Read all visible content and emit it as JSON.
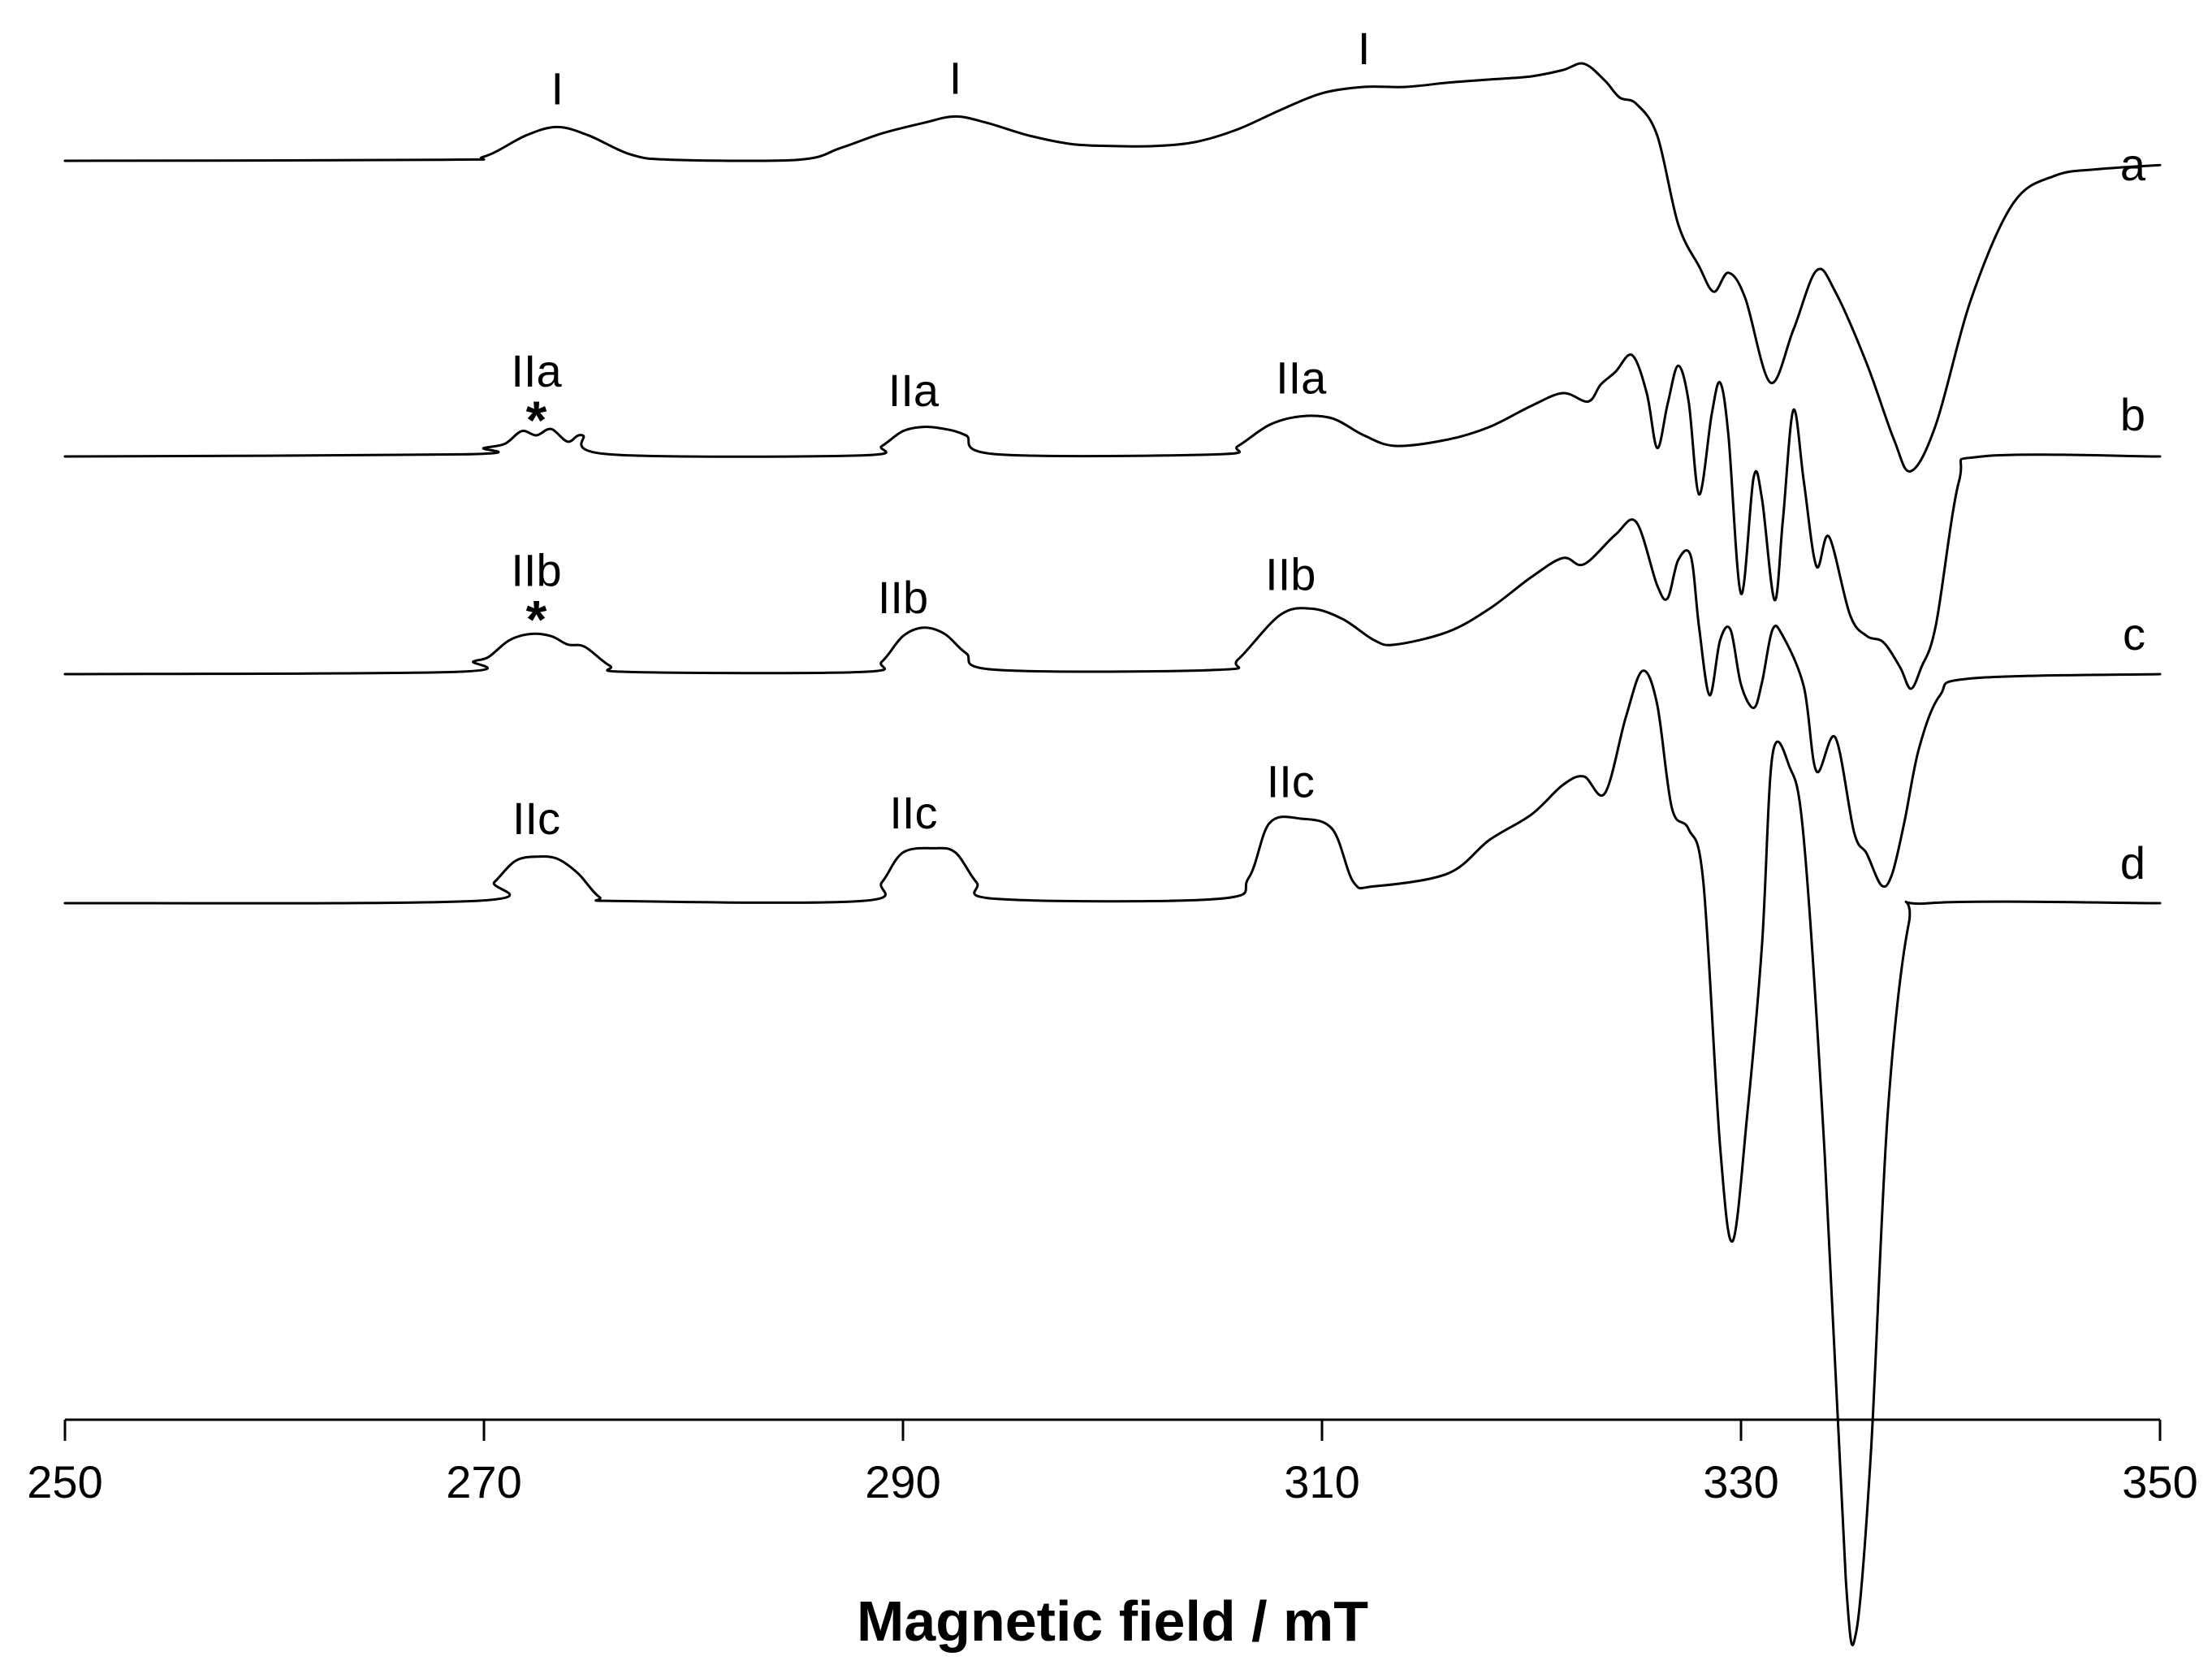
{
  "chart_data": {
    "type": "line",
    "title": "",
    "xlabel": "Magnetic field / mT",
    "ylabel": "",
    "xlim": [
      250,
      350
    ],
    "x_ticks": [
      250,
      270,
      290,
      310,
      330,
      350
    ],
    "grid": false,
    "series": [
      {
        "name": "a",
        "points": [
          [
            250,
            0
          ],
          [
            268,
            0.5
          ],
          [
            270,
            2
          ],
          [
            272,
            12
          ],
          [
            273.5,
            16
          ],
          [
            275,
            12
          ],
          [
            277,
            3
          ],
          [
            279,
            0.5
          ],
          [
            285,
            0.5
          ],
          [
            287,
            6
          ],
          [
            289,
            13
          ],
          [
            291,
            18
          ],
          [
            292.5,
            21
          ],
          [
            294,
            18
          ],
          [
            296,
            12
          ],
          [
            298,
            8
          ],
          [
            300,
            7
          ],
          [
            302,
            7
          ],
          [
            304,
            9
          ],
          [
            306,
            15
          ],
          [
            308,
            24
          ],
          [
            310,
            32
          ],
          [
            312,
            35
          ],
          [
            314,
            35
          ],
          [
            316,
            37
          ],
          [
            318,
            38.5
          ],
          [
            320,
            40
          ],
          [
            321.5,
            43
          ],
          [
            322.5,
            46
          ],
          [
            323.5,
            38
          ],
          [
            324.2,
            30
          ],
          [
            325,
            27
          ],
          [
            326,
            12
          ],
          [
            327,
            -30
          ],
          [
            328,
            -50
          ],
          [
            328.7,
            -62
          ],
          [
            329.4,
            -53
          ],
          [
            330.2,
            -65
          ],
          [
            331.4,
            -105
          ],
          [
            332.5,
            -80
          ],
          [
            333.6,
            -52
          ],
          [
            334.5,
            -62
          ],
          [
            336,
            -96
          ],
          [
            337.3,
            -132
          ],
          [
            338.1,
            -147
          ],
          [
            339.3,
            -125
          ],
          [
            341,
            -65
          ],
          [
            343,
            -20
          ],
          [
            345,
            -7
          ],
          [
            347,
            -4
          ],
          [
            350,
            -2
          ]
        ]
      },
      {
        "name": "b",
        "points": [
          [
            250,
            0
          ],
          [
            269,
            1
          ],
          [
            270,
            4
          ],
          [
            271,
            6
          ],
          [
            271.8,
            12
          ],
          [
            272.5,
            10
          ],
          [
            273.2,
            13
          ],
          [
            274,
            7
          ],
          [
            274.7,
            10
          ],
          [
            276,
            1
          ],
          [
            288,
            0.5
          ],
          [
            289,
            5
          ],
          [
            290,
            12
          ],
          [
            291,
            14
          ],
          [
            292,
            13
          ],
          [
            293,
            10
          ],
          [
            294.5,
            1
          ],
          [
            305,
            1
          ],
          [
            306,
            5
          ],
          [
            307.5,
            15
          ],
          [
            309,
            19
          ],
          [
            310.5,
            18
          ],
          [
            312,
            10
          ],
          [
            313.5,
            5
          ],
          [
            316,
            8
          ],
          [
            318,
            14
          ],
          [
            320,
            24
          ],
          [
            321.5,
            30
          ],
          [
            322.7,
            26
          ],
          [
            323.3,
            34
          ],
          [
            324,
            40
          ],
          [
            324.8,
            48
          ],
          [
            325.5,
            30
          ],
          [
            326,
            4
          ],
          [
            326.5,
            25
          ],
          [
            327,
            43
          ],
          [
            327.5,
            26
          ],
          [
            328,
            -18
          ],
          [
            328.6,
            20
          ],
          [
            329,
            35
          ],
          [
            329.4,
            10
          ],
          [
            330,
            -65
          ],
          [
            330.6,
            -10
          ],
          [
            331,
            -20
          ],
          [
            331.6,
            -68
          ],
          [
            332,
            -30
          ],
          [
            332.5,
            22
          ],
          [
            333,
            -12
          ],
          [
            333.6,
            -52
          ],
          [
            334.2,
            -38
          ],
          [
            335.2,
            -75
          ],
          [
            336,
            -85
          ],
          [
            336.8,
            -88
          ],
          [
            337.6,
            -100
          ],
          [
            338.1,
            -110
          ],
          [
            338.6,
            -100
          ],
          [
            339.3,
            -80
          ],
          [
            340.4,
            -12
          ],
          [
            341.5,
            0
          ],
          [
            350,
            0
          ]
        ]
      },
      {
        "name": "c",
        "points": [
          [
            250,
            0
          ],
          [
            268.5,
            1
          ],
          [
            269.5,
            6
          ],
          [
            270.2,
            8
          ],
          [
            271.2,
            16
          ],
          [
            272.2,
            19
          ],
          [
            273.2,
            18
          ],
          [
            274,
            14
          ],
          [
            274.8,
            13
          ],
          [
            276,
            4
          ],
          [
            277,
            1
          ],
          [
            288,
            1
          ],
          [
            289,
            6
          ],
          [
            290,
            18
          ],
          [
            291,
            22
          ],
          [
            292,
            19
          ],
          [
            293,
            10
          ],
          [
            294.5,
            2
          ],
          [
            305,
            2
          ],
          [
            306,
            7
          ],
          [
            308,
            28
          ],
          [
            309.5,
            31
          ],
          [
            311,
            26
          ],
          [
            312.5,
            16
          ],
          [
            313.5,
            14
          ],
          [
            316,
            20
          ],
          [
            318,
            31
          ],
          [
            320,
            46
          ],
          [
            321.5,
            55
          ],
          [
            322.5,
            52
          ],
          [
            324,
            66
          ],
          [
            325,
            72
          ],
          [
            326,
            42
          ],
          [
            326.5,
            36
          ],
          [
            327,
            54
          ],
          [
            327.6,
            56
          ],
          [
            328,
            22
          ],
          [
            328.5,
            -10
          ],
          [
            329,
            16
          ],
          [
            329.5,
            21
          ],
          [
            330,
            -5
          ],
          [
            330.6,
            -16
          ],
          [
            331,
            -4
          ],
          [
            331.5,
            21
          ],
          [
            332,
            18
          ],
          [
            333,
            -6
          ],
          [
            333.6,
            -46
          ],
          [
            334.5,
            -30
          ],
          [
            335.4,
            -75
          ],
          [
            336,
            -85
          ],
          [
            336.7,
            -100
          ],
          [
            337.2,
            -95
          ],
          [
            337.8,
            -70
          ],
          [
            338.5,
            -35
          ],
          [
            339.5,
            -10
          ],
          [
            341,
            -2
          ],
          [
            350,
            0
          ]
        ]
      },
      {
        "name": "d",
        "points": [
          [
            250,
            0
          ],
          [
            269.5,
            1
          ],
          [
            270.5,
            10
          ],
          [
            271.5,
            20
          ],
          [
            272.5,
            22
          ],
          [
            273.5,
            21
          ],
          [
            274.5,
            14
          ],
          [
            275.5,
            3
          ],
          [
            276.5,
            1
          ],
          [
            288,
            1
          ],
          [
            289,
            10
          ],
          [
            290,
            24
          ],
          [
            291.5,
            26
          ],
          [
            292.5,
            24
          ],
          [
            293.5,
            10
          ],
          [
            294.5,
            2
          ],
          [
            305,
            2
          ],
          [
            306.5,
            12
          ],
          [
            307.5,
            38
          ],
          [
            309,
            40
          ],
          [
            310.5,
            35
          ],
          [
            311.5,
            10
          ],
          [
            312.5,
            8
          ],
          [
            316,
            14
          ],
          [
            318,
            30
          ],
          [
            320,
            42
          ],
          [
            321.5,
            56
          ],
          [
            322.5,
            60
          ],
          [
            323.5,
            52
          ],
          [
            324.5,
            88
          ],
          [
            325.3,
            110
          ],
          [
            326,
            94
          ],
          [
            326.7,
            45
          ],
          [
            327.5,
            35
          ],
          [
            328.2,
            10
          ],
          [
            329,
            -115
          ],
          [
            329.6,
            -160
          ],
          [
            330.3,
            -100
          ],
          [
            331,
            -20
          ],
          [
            331.5,
            70
          ],
          [
            332.3,
            65
          ],
          [
            333,
            30
          ],
          [
            334,
            -120
          ],
          [
            335,
            -320
          ],
          [
            335.5,
            -345
          ],
          [
            336.2,
            -260
          ],
          [
            337,
            -100
          ],
          [
            338,
            -10
          ],
          [
            339,
            0
          ],
          [
            350,
            0
          ]
        ]
      }
    ],
    "trace_labels": [
      "a",
      "b",
      "c",
      "d"
    ],
    "annotations": [
      {
        "text": "I",
        "x": 273.5,
        "trace": "a"
      },
      {
        "text": "I",
        "x": 292.5,
        "trace": "a"
      },
      {
        "text": "I",
        "x": 312,
        "trace": "a"
      },
      {
        "text": "IIa",
        "x": 272.5,
        "trace": "b",
        "star": "*"
      },
      {
        "text": "IIa",
        "x": 290.5,
        "trace": "b"
      },
      {
        "text": "IIa",
        "x": 309,
        "trace": "b"
      },
      {
        "text": "IIb",
        "x": 272.5,
        "trace": "c",
        "star": "*"
      },
      {
        "text": "IIb",
        "x": 290,
        "trace": "c"
      },
      {
        "text": "IIb",
        "x": 308.5,
        "trace": "c"
      },
      {
        "text": "IIc",
        "x": 272.5,
        "trace": "d"
      },
      {
        "text": "IIc",
        "x": 290.5,
        "trace": "d"
      },
      {
        "text": "IIc",
        "x": 308.5,
        "trace": "d"
      }
    ]
  }
}
